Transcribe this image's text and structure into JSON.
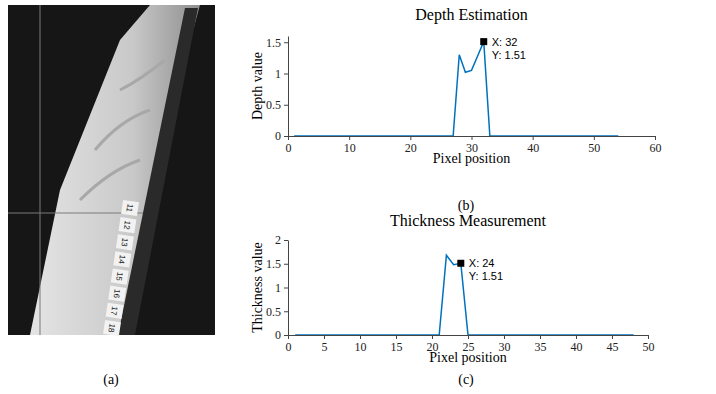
{
  "photo": {
    "caption": "(a)",
    "tape_labels": [
      "11",
      "12",
      "13",
      "14",
      "15",
      "16",
      "17",
      "18"
    ]
  },
  "chart_data": [
    {
      "type": "line",
      "title": "Depth Estimation",
      "x_label": "Pixel position",
      "y_label": "Depth value",
      "caption": "(b)",
      "color": "#0072bd",
      "x": [
        1,
        2,
        3,
        4,
        5,
        6,
        7,
        8,
        9,
        10,
        11,
        12,
        13,
        14,
        15,
        16,
        17,
        18,
        19,
        20,
        21,
        22,
        23,
        24,
        25,
        26,
        27,
        28,
        29,
        30,
        31,
        32,
        33,
        34,
        35,
        36,
        37,
        38,
        39,
        40,
        41,
        42,
        43,
        44,
        45,
        46,
        47,
        48,
        49,
        50,
        51,
        52,
        53,
        54
      ],
      "values": [
        0,
        0,
        0,
        0,
        0,
        0,
        0,
        0,
        0,
        0,
        0,
        0,
        0,
        0,
        0,
        0,
        0,
        0,
        0,
        0,
        0,
        0,
        0,
        0,
        0,
        0,
        0,
        1.3,
        1.02,
        1.05,
        1.28,
        1.51,
        0,
        0,
        0,
        0,
        0,
        0,
        0,
        0,
        0,
        0,
        0,
        0,
        0,
        0,
        0,
        0,
        0,
        0,
        0,
        0,
        0,
        0
      ],
      "xlim": [
        0,
        60
      ],
      "xticks": [
        0,
        10,
        20,
        30,
        40,
        50,
        60
      ],
      "ylim": [
        0,
        1.6
      ],
      "yticks": [
        0,
        0.5,
        1,
        1.5
      ],
      "grid": false,
      "annotations": [
        {
          "x": 32,
          "y": 1.51,
          "text": [
            "X: 32",
            "Y: 1.51"
          ]
        }
      ]
    },
    {
      "type": "line",
      "title": "Thickness Measurement",
      "x_label": "Pixel position",
      "y_label": "Thickness value",
      "caption": "(c)",
      "color": "#0072bd",
      "x": [
        1,
        2,
        3,
        4,
        5,
        6,
        7,
        8,
        9,
        10,
        11,
        12,
        13,
        14,
        15,
        16,
        17,
        18,
        19,
        20,
        21,
        22,
        23,
        24,
        25,
        26,
        27,
        28,
        29,
        30,
        31,
        32,
        33,
        34,
        35,
        36,
        37,
        38,
        39,
        40,
        41,
        42,
        43,
        44,
        45,
        46,
        47,
        48
      ],
      "values": [
        0,
        0,
        0,
        0,
        0,
        0,
        0,
        0,
        0,
        0,
        0,
        0,
        0,
        0,
        0,
        0,
        0,
        0,
        0,
        0,
        0,
        1.68,
        1.48,
        1.51,
        0,
        0,
        0,
        0,
        0,
        0,
        0,
        0,
        0,
        0,
        0,
        0,
        0,
        0,
        0,
        0,
        0,
        0,
        0,
        0,
        0,
        0,
        0,
        0
      ],
      "xlim": [
        0,
        50
      ],
      "xticks": [
        0,
        5,
        10,
        15,
        20,
        25,
        30,
        35,
        40,
        45,
        50
      ],
      "ylim": [
        0,
        2
      ],
      "yticks": [
        0,
        0.5,
        1,
        1.5,
        2
      ],
      "grid": false,
      "annotations": [
        {
          "x": 24,
          "y": 1.51,
          "text": [
            "X: 24",
            "Y: 1.51"
          ]
        }
      ]
    }
  ]
}
